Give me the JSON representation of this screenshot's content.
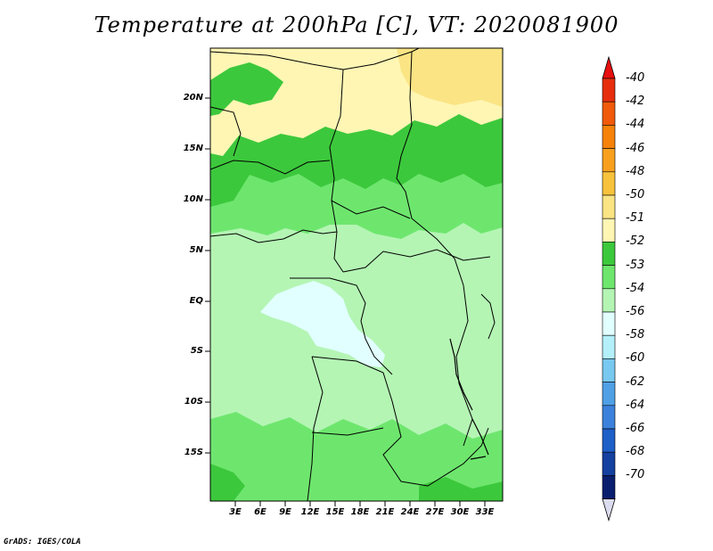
{
  "title": "Temperature at 200hPa [C], VT: 2020081900",
  "credit": "GrADS: IGES/COLA",
  "lat_labels": [
    "20N",
    "15N",
    "10N",
    "5N",
    "EQ",
    "5S",
    "10S",
    "15S"
  ],
  "lon_labels": [
    "3E",
    "6E",
    "9E",
    "12E",
    "15E",
    "18E",
    "21E",
    "24E",
    "27E",
    "30E",
    "33E"
  ],
  "colorbar": {
    "labels": [
      "-40",
      "-42",
      "-44",
      "-46",
      "-48",
      "-50",
      "-51",
      "-52",
      "-53",
      "-54",
      "-56",
      "-58",
      "-60",
      "-62",
      "-64",
      "-66",
      "-68",
      "-70"
    ],
    "colors": [
      "#e62e0e",
      "#f05a0a",
      "#f6820a",
      "#f8a01e",
      "#f7c23c",
      "#fae484",
      "#fff6b4",
      "#3cc83c",
      "#6ee66e",
      "#b4f5b4",
      "#e1ffff",
      "#b4f0fa",
      "#78c8f0",
      "#50a0e6",
      "#3c82dc",
      "#1e5fc8",
      "#1440a0",
      "#0a1e6e"
    ],
    "top_color": "#e60e0e",
    "bottom_color": "#dcdcf0"
  },
  "map_colors": {
    "pale_yellow": "#fff6b4",
    "yellow": "#fae484",
    "dark_green": "#3cc83c",
    "green": "#6ee66e",
    "light_green": "#b4f5b4",
    "cyan": "#e1ffff"
  }
}
